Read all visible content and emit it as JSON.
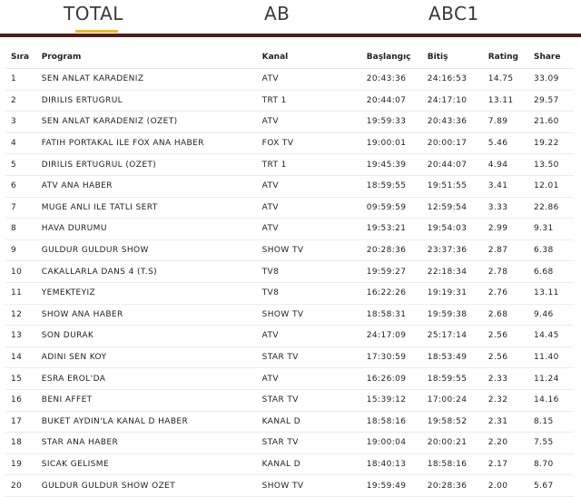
{
  "tabs": [
    "TOTAL",
    "AB",
    "ABC1"
  ],
  "colors": {
    "accent_underline": "#e0b93a",
    "bar": "#4a1f1a"
  },
  "headers": {
    "sira": "Sıra",
    "program": "Program",
    "kanal": "Kanal",
    "baslangic": "Başlangıç",
    "bitis": "Bitiş",
    "rating": "Rating",
    "share": "Share"
  },
  "rows": [
    {
      "sira": "1",
      "program": "SEN ANLAT KARADENIZ",
      "kanal": "ATV",
      "baslangic": "20:43:36",
      "bitis": "24:16:53",
      "rating": "14.75",
      "share": "33.09"
    },
    {
      "sira": "2",
      "program": "DIRILIS ERTUGRUL",
      "kanal": "TRT 1",
      "baslangic": "20:44:07",
      "bitis": "24:17:10",
      "rating": "13.11",
      "share": "29.57"
    },
    {
      "sira": "3",
      "program": "SEN ANLAT KARADENIZ (OZET)",
      "kanal": "ATV",
      "baslangic": "19:59:33",
      "bitis": "20:43:36",
      "rating": "7.89",
      "share": "21.60"
    },
    {
      "sira": "4",
      "program": "FATIH PORTAKAL ILE FOX ANA HABER",
      "kanal": "FOX TV",
      "baslangic": "19:00:01",
      "bitis": "20:00:17",
      "rating": "5.46",
      "share": "19.22"
    },
    {
      "sira": "5",
      "program": "DIRILIS ERTUGRUL (OZET)",
      "kanal": "TRT 1",
      "baslangic": "19:45:39",
      "bitis": "20:44:07",
      "rating": "4.94",
      "share": "13.50"
    },
    {
      "sira": "6",
      "program": "ATV ANA HABER",
      "kanal": "ATV",
      "baslangic": "18:59:55",
      "bitis": "19:51:55",
      "rating": "3.41",
      "share": "12.01"
    },
    {
      "sira": "7",
      "program": "MUGE ANLI ILE TATLI SERT",
      "kanal": "ATV",
      "baslangic": "09:59:59",
      "bitis": "12:59:54",
      "rating": "3.33",
      "share": "22.86"
    },
    {
      "sira": "8",
      "program": "HAVA DURUMU",
      "kanal": "ATV",
      "baslangic": "19:53:21",
      "bitis": "19:54:03",
      "rating": "2.99",
      "share": "9.31"
    },
    {
      "sira": "9",
      "program": "GULDUR GULDUR SHOW",
      "kanal": "SHOW TV",
      "baslangic": "20:28:36",
      "bitis": "23:37:36",
      "rating": "2.87",
      "share": "6.38"
    },
    {
      "sira": "10",
      "program": "CAKALLARLA DANS 4 (T.S)",
      "kanal": "TV8",
      "baslangic": "19:59:27",
      "bitis": "22:18:34",
      "rating": "2.78",
      "share": "6.68"
    },
    {
      "sira": "11",
      "program": "YEMEKTEYIZ",
      "kanal": "TV8",
      "baslangic": "16:22:26",
      "bitis": "19:19:31",
      "rating": "2.76",
      "share": "13.11"
    },
    {
      "sira": "12",
      "program": "SHOW ANA HABER",
      "kanal": "SHOW TV",
      "baslangic": "18:58:31",
      "bitis": "19:59:38",
      "rating": "2.68",
      "share": "9.46"
    },
    {
      "sira": "13",
      "program": "SON DURAK",
      "kanal": "ATV",
      "baslangic": "24:17:09",
      "bitis": "25:17:14",
      "rating": "2.56",
      "share": "14.45"
    },
    {
      "sira": "14",
      "program": "ADINI SEN KOY",
      "kanal": "STAR TV",
      "baslangic": "17:30:59",
      "bitis": "18:53:49",
      "rating": "2.56",
      "share": "11.40"
    },
    {
      "sira": "15",
      "program": "ESRA EROL'DA",
      "kanal": "ATV",
      "baslangic": "16:26:09",
      "bitis": "18:59:55",
      "rating": "2.33",
      "share": "11.24"
    },
    {
      "sira": "16",
      "program": "BENI AFFET",
      "kanal": "STAR TV",
      "baslangic": "15:39:12",
      "bitis": "17:00:24",
      "rating": "2.32",
      "share": "14.16"
    },
    {
      "sira": "17",
      "program": "BUKET AYDIN'LA KANAL D HABER",
      "kanal": "KANAL D",
      "baslangic": "18:58:16",
      "bitis": "19:58:52",
      "rating": "2.31",
      "share": "8.15"
    },
    {
      "sira": "18",
      "program": "STAR ANA HABER",
      "kanal": "STAR TV",
      "baslangic": "19:00:04",
      "bitis": "20:00:21",
      "rating": "2.20",
      "share": "7.55"
    },
    {
      "sira": "19",
      "program": "SICAK GELISME",
      "kanal": "KANAL D",
      "baslangic": "18:40:13",
      "bitis": "18:58:16",
      "rating": "2.17",
      "share": "8.70"
    },
    {
      "sira": "20",
      "program": "GULDUR GULDUR SHOW OZET",
      "kanal": "SHOW TV",
      "baslangic": "19:59:49",
      "bitis": "20:28:36",
      "rating": "2.00",
      "share": "5.67"
    }
  ]
}
